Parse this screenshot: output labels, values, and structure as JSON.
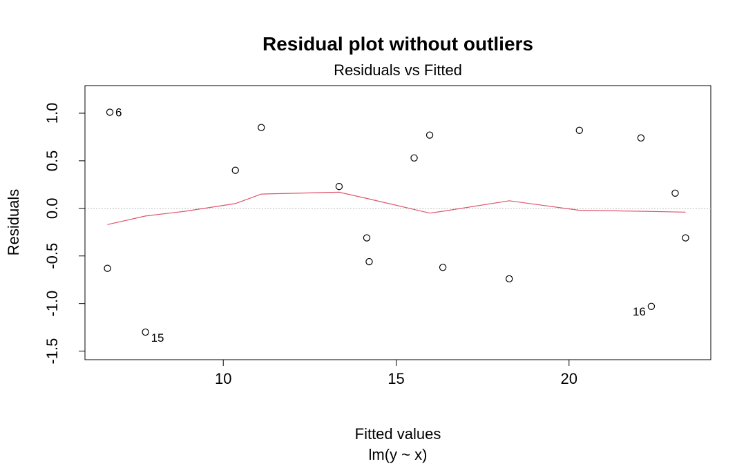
{
  "chart_data": {
    "type": "scatter",
    "title": "Residual plot without outliers",
    "subtitle": "Residuals vs Fitted",
    "xlabel": "Fitted values",
    "xlabel2": "lm(y ~ x)",
    "ylabel": "Residuals",
    "xlim": [
      6.0,
      24.1
    ],
    "ylim": [
      -1.59,
      1.29
    ],
    "x_ticks": [
      10,
      15,
      20
    ],
    "x_tick_labels": [
      "10",
      "15",
      "20"
    ],
    "y_ticks": [
      -1.5,
      -1.0,
      -0.5,
      0.0,
      0.5,
      1.0
    ],
    "y_tick_labels": [
      "-1.5",
      "-1.0",
      "-0.5",
      "0.0",
      "0.5",
      "1.0"
    ],
    "points": [
      {
        "x": 6.65,
        "y": -0.63
      },
      {
        "x": 6.72,
        "y": 1.01,
        "label": "6"
      },
      {
        "x": 7.75,
        "y": -1.3,
        "label": "15"
      },
      {
        "x": 10.35,
        "y": 0.4
      },
      {
        "x": 11.1,
        "y": 0.85
      },
      {
        "x": 13.35,
        "y": 0.23
      },
      {
        "x": 14.15,
        "y": -0.31
      },
      {
        "x": 14.22,
        "y": -0.56
      },
      {
        "x": 15.52,
        "y": 0.53
      },
      {
        "x": 15.97,
        "y": 0.77
      },
      {
        "x": 16.35,
        "y": -0.62
      },
      {
        "x": 18.27,
        "y": -0.74
      },
      {
        "x": 20.3,
        "y": 0.82
      },
      {
        "x": 22.08,
        "y": 0.74
      },
      {
        "x": 22.38,
        "y": -1.03,
        "label": "16"
      },
      {
        "x": 23.07,
        "y": 0.16
      },
      {
        "x": 23.37,
        "y": -0.31
      }
    ],
    "smoother": {
      "x": [
        6.65,
        7.75,
        8.9,
        10.35,
        11.1,
        13.35,
        14.2,
        15.97,
        16.35,
        18.27,
        20.3,
        22.08,
        23.37
      ],
      "y": [
        -0.17,
        -0.08,
        -0.03,
        0.05,
        0.15,
        0.17,
        0.1,
        -0.05,
        -0.03,
        0.08,
        -0.02,
        -0.03,
        -0.04
      ]
    },
    "colors": {
      "points": "#000000",
      "smoother": "#DF536B",
      "zero_line": "#BEBEBE",
      "frame": "#000000"
    },
    "grid": false
  }
}
